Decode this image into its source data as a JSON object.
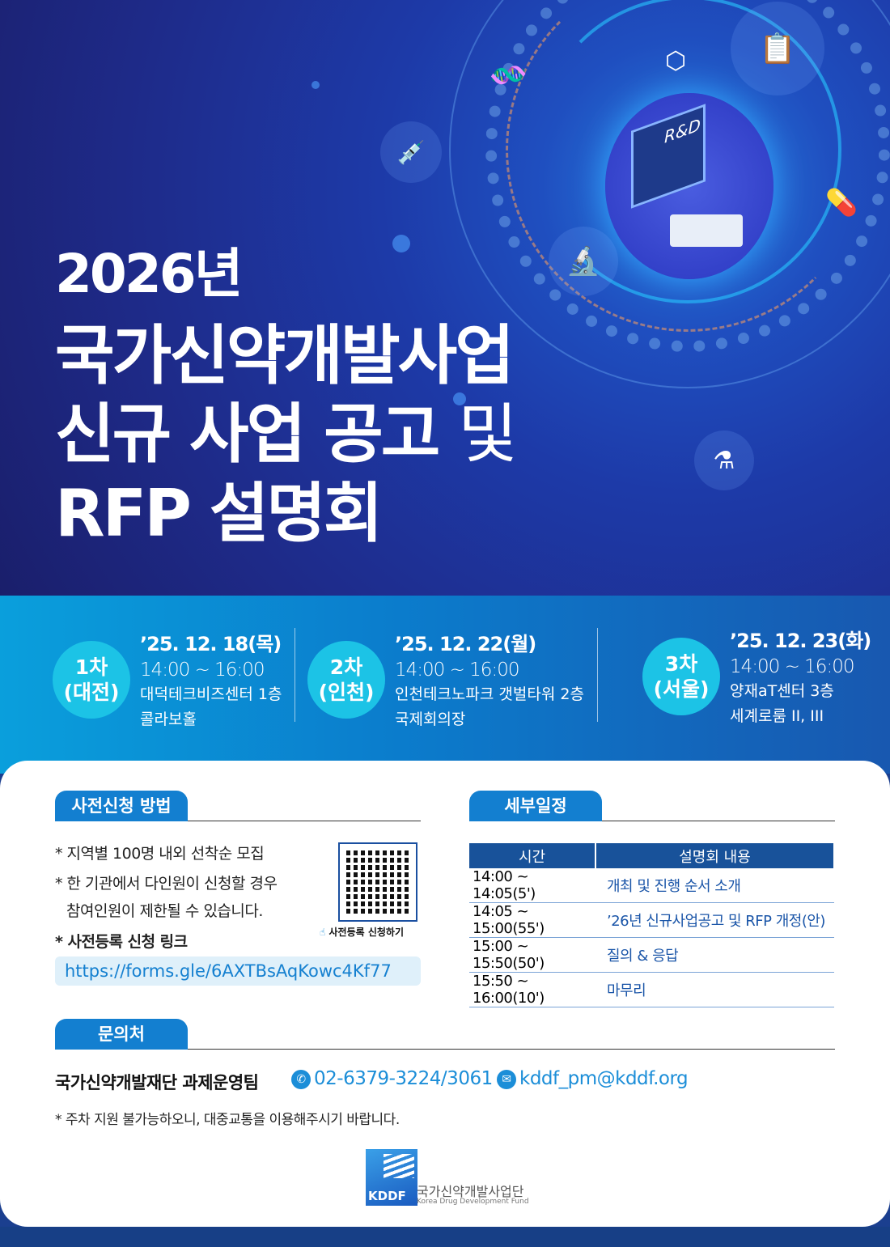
{
  "hero": {
    "year": "2026년",
    "title_line1": "국가신약개발사업",
    "title_line2_bold": "신규 사업 공고",
    "title_line2_light": "및",
    "title_line3": "RFP 설명회",
    "board_label": "R&D",
    "icons": [
      "dna-icon",
      "molecule-icon",
      "clipboard-icon",
      "vial-syringe-icon",
      "pills-icon",
      "microscope-icon",
      "flask-icon"
    ]
  },
  "sessions": [
    {
      "badge1": "1차",
      "badge2": "(대전)",
      "date": "’25. 12. 18(목)",
      "time": "14:00 ~ 16:00",
      "place1": "대덕테크비즈센터 1층",
      "place2": "콜라보홀"
    },
    {
      "badge1": "2차",
      "badge2": "(인천)",
      "date": "’25. 12. 22(월)",
      "time": "14:00 ~ 16:00",
      "place1": "인천테크노파크 갯벌타워 2층",
      "place2": "국제회의장"
    },
    {
      "badge1": "3차",
      "badge2": "(서울)",
      "date": "’25. 12. 23(화)",
      "time": "14:00 ~ 16:00",
      "place1": "양재aT센터 3층",
      "place2": "세계로룸 II, III"
    }
  ],
  "registration": {
    "heading": "사전신청 방법",
    "note1": "* 지역별 100명 내외 선착순 모집",
    "note2a": "* 한 기관에서 다인원이 신청할 경우",
    "note2b": "참여인원이 제한될 수 있습니다.",
    "link_label": "* 사전등록 신청 링크",
    "url": "https://forms.gle/6AXTBsAqKowc4Kf77",
    "qr_caption": "사전등록 신청하기"
  },
  "schedule": {
    "heading": "세부일정",
    "columns": [
      "시간",
      "설명회 내용"
    ],
    "rows": [
      [
        "14:00 ~ 14:05(5')",
        "개최 및 진행 순서 소개"
      ],
      [
        "14:05 ~ 15:00(55')",
        "’26년 신규사업공고 및 RFP 개정(안)"
      ],
      [
        "15:00 ~ 15:50(50')",
        "질의 & 응답"
      ],
      [
        "15:50 ~ 16:00(10')",
        "마무리"
      ]
    ]
  },
  "contact": {
    "heading": "문의처",
    "team": "국가신약개발재단 과제운영팀",
    "phone": "02-6379-3224/3061",
    "email": "kddf_pm@kddf.org",
    "note": "* 주차 지원 불가능하오니, 대중교통을 이용해주시기 바랍니다."
  },
  "footer": {
    "logo_text": "KDDF",
    "org_kr": "국가신약개발사업단",
    "org_en": "Korea Drug Development Fund"
  },
  "colors": {
    "accent": "#137fd0",
    "navy": "#18529a",
    "cyan": "#1cc3e6"
  }
}
